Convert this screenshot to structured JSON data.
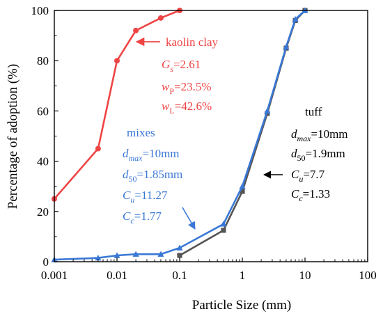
{
  "chart_data": {
    "type": "line",
    "xscale": "log",
    "xlim": [
      0.001,
      100
    ],
    "ylim": [
      0,
      100
    ],
    "xlabel": "Particle Size (mm)",
    "ylabel": "Percentage of adoption  (%)",
    "xtick_labels": [
      "0.001",
      "0.01",
      "0.1",
      "1",
      "10",
      "100"
    ],
    "xtick_values": [
      0.001,
      0.01,
      0.1,
      1,
      10,
      100
    ],
    "ytick_labels": [
      "0",
      "20",
      "40",
      "60",
      "80",
      "100"
    ],
    "ytick_values": [
      0,
      20,
      40,
      60,
      80,
      100
    ],
    "grid": false,
    "series": [
      {
        "name": "kaolin clay",
        "color": "#ee4444",
        "marker": "circle",
        "x": [
          0.001,
          0.005,
          0.01,
          0.02,
          0.05,
          0.1
        ],
        "y": [
          25,
          45,
          80,
          92,
          97,
          100
        ]
      },
      {
        "name": "tuff",
        "color": "#555555",
        "marker": "square",
        "x": [
          0.1,
          0.5,
          1,
          2.5,
          5,
          7,
          10
        ],
        "y": [
          2.5,
          12.5,
          28,
          59,
          85,
          96,
          100
        ]
      },
      {
        "name": "mixes",
        "color": "#3a78d6",
        "marker": "triangle",
        "x": [
          0.001,
          0.005,
          0.01,
          0.02,
          0.05,
          0.1,
          0.5,
          1,
          2.5,
          5,
          7,
          10
        ],
        "y": [
          0.8,
          1.5,
          2.5,
          3,
          3,
          5.5,
          15,
          30,
          60,
          85.5,
          96.5,
          100
        ]
      }
    ],
    "annotations": {
      "kaolin": {
        "title": "kaolin clay",
        "gs_sym": "G",
        "gs_sub": "s",
        "gs_val": "=2.61",
        "wp_sym": "w",
        "wp_sub": "P",
        "wp_val": "=23.5%",
        "wl_sym": "w",
        "wl_sub": "L",
        "wl_val": "=42.6%"
      },
      "tuff": {
        "title": "tuff",
        "dmax_sym": "d",
        "dmax_sub": "max",
        "dmax_val": "=10mm",
        "d50_sym": "d",
        "d50_sub": "50",
        "d50_val": "=1.9mm",
        "cu_sym": "C",
        "cu_sub": "u",
        "cu_val": "=7.7",
        "cc_sym": "C",
        "cc_sub": "c",
        "cc_val": "=1.33"
      },
      "mixes": {
        "title": "mixes",
        "dmax_sym": "d",
        "dmax_sub": "max",
        "dmax_val": "=10mm",
        "d50_sym": "d",
        "d50_sub": "50",
        "d50_val": "=1.85mm",
        "cu_sym": "C",
        "cu_sub": "u",
        "cu_val": "=11.27",
        "cc_sym": "C",
        "cc_sub": "c",
        "cc_val": "=1.77"
      }
    }
  }
}
